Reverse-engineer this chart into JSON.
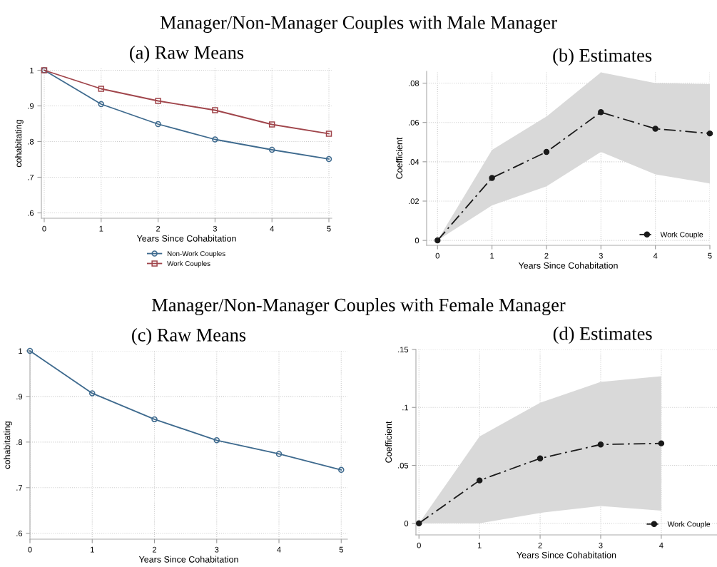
{
  "chart_data": [
    {
      "type": "line",
      "title": "(a) Raw Means",
      "annotations": [
        "Manager/Non-Manager Couples with Male Manager"
      ],
      "xlabel": "Years Since Cohabitation",
      "ylabel": "cohabitating",
      "x": [
        0,
        1,
        2,
        3,
        4,
        5
      ],
      "series": [
        {
          "name": "Non-Work Couples",
          "color": "#3e6a8e",
          "marker": "circle",
          "values": [
            1.0,
            0.905,
            0.849,
            0.806,
            0.777,
            0.751
          ]
        },
        {
          "name": "Work Couples",
          "color": "#a0454b",
          "marker": "square",
          "values": [
            1.0,
            0.948,
            0.914,
            0.888,
            0.848,
            0.822
          ]
        }
      ],
      "xlim": [
        -0.05,
        5.05
      ],
      "ylim": [
        0.585,
        1.005
      ],
      "xticks": [
        0,
        1,
        2,
        3,
        4,
        5
      ],
      "yticks": [
        {
          "value": 0.6,
          "label": ".6"
        },
        {
          "value": 0.7,
          "label": ".7"
        },
        {
          "value": 0.8,
          "label": ".8"
        },
        {
          "value": 0.9,
          "label": ".9"
        },
        1
      ],
      "grid": true,
      "legend": "bottom",
      "line_style": "solid"
    },
    {
      "type": "line",
      "title": "(b) Estimates",
      "xlabel": "Years Since Cohabitation",
      "ylabel": "Coefficient",
      "x": [
        0,
        1,
        2,
        3,
        4,
        5
      ],
      "series": [
        {
          "name": "Work Couple",
          "color": "#1a1a1a",
          "marker": "circle",
          "values": [
            0,
            0.0318,
            0.045,
            0.0652,
            0.0568,
            0.0544
          ],
          "lower": [
            0,
            0.0178,
            0.0275,
            0.045,
            0.0336,
            0.029
          ],
          "upper": [
            0,
            0.046,
            0.063,
            0.0855,
            0.08,
            0.0795
          ]
        }
      ],
      "xlim": [
        -0.2,
        5.0
      ],
      "ylim": [
        -0.0025,
        0.086
      ],
      "xticks": [
        0,
        1,
        2,
        3,
        4,
        5
      ],
      "yticks": [
        0,
        {
          "value": 0.02,
          "label": ".02"
        },
        {
          "value": 0.04,
          "label": ".04"
        },
        {
          "value": 0.06,
          "label": ".06"
        },
        {
          "value": 0.08,
          "label": ".08"
        }
      ],
      "grid": true,
      "legend": "bottom right",
      "line_style": "dashed"
    },
    {
      "type": "line",
      "title": "(c) Raw Means",
      "annotations": [
        "Manager/Non-Manager Couples with Female Manager"
      ],
      "xlabel": "Years Since Cohabitation",
      "ylabel": "cohabitating",
      "x": [
        0,
        1,
        2,
        3,
        4,
        5
      ],
      "series": [
        {
          "color": "#3e6a8e",
          "marker": "circle",
          "values": [
            1.0,
            0.907,
            0.85,
            0.804,
            0.774,
            0.739
          ]
        }
      ],
      "xlim": [
        0,
        5.1
      ],
      "ylim": [
        0.587,
        1.0
      ],
      "xticks": [
        0,
        1,
        2,
        3,
        4,
        5
      ],
      "yticks": [
        {
          "value": 0.6,
          "label": ".6"
        },
        {
          "value": 0.7,
          "label": ".7"
        },
        {
          "value": 0.8,
          "label": ".8"
        },
        {
          "value": 0.9,
          "label": ".9"
        },
        1
      ],
      "grid": true,
      "line_style": "solid"
    },
    {
      "type": "line",
      "title": "(d) Estimates",
      "xlabel": "Years Since Cohabitation",
      "ylabel": "Coefficient",
      "x": [
        0,
        1,
        2,
        3,
        4
      ],
      "series": [
        {
          "name": "Work Couple",
          "color": "#1a1a1a",
          "marker": "circle",
          "values": [
            0,
            0.037,
            0.056,
            0.068,
            0.069
          ],
          "lower": [
            0,
            0,
            0.009,
            0.015,
            0.011
          ],
          "upper": [
            0,
            0.075,
            0.104,
            0.122,
            0.127
          ]
        }
      ],
      "xlim": [
        -0.05,
        4.92
      ],
      "ylim": [
        -0.01,
        0.15
      ],
      "xticks": [
        0,
        1,
        2,
        3,
        4
      ],
      "yticks": [
        0,
        {
          "value": 0.05,
          "label": ".05"
        },
        {
          "value": 0.1,
          "label": ".1"
        },
        {
          "value": 0.15,
          "label": ".15"
        }
      ],
      "grid": true,
      "legend": "bottom right",
      "line_style": "dashed"
    }
  ]
}
